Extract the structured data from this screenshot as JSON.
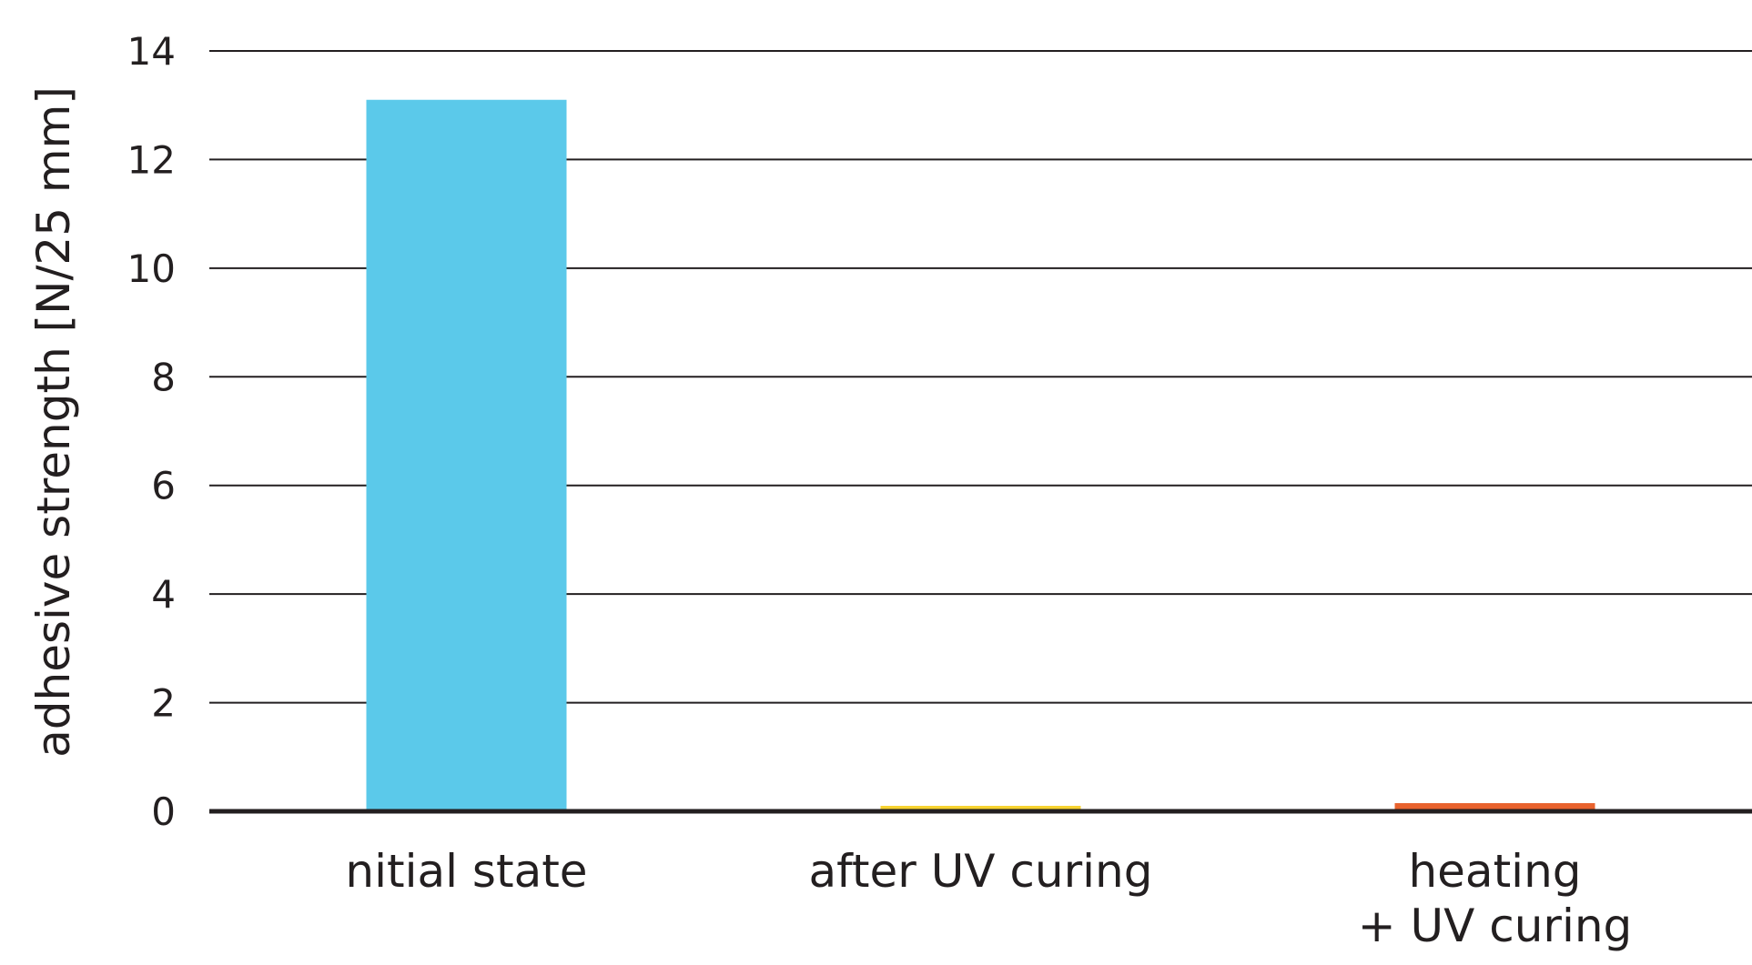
{
  "chart_data": {
    "type": "bar",
    "title": "",
    "xlabel": "",
    "ylabel": "adhesive strength [N/25 mm]",
    "ylim": [
      0,
      14
    ],
    "yticks": [
      0,
      2,
      4,
      6,
      8,
      10,
      12,
      14
    ],
    "categories": [
      [
        "nitial state"
      ],
      [
        "after UV curing"
      ],
      [
        "heating",
        "+ UV curing"
      ]
    ],
    "values": [
      13.1,
      0.1,
      0.15
    ],
    "colors": [
      "#5bc9ea",
      "#f6d22f",
      "#e8622d"
    ],
    "grid": true,
    "legend": "none"
  }
}
